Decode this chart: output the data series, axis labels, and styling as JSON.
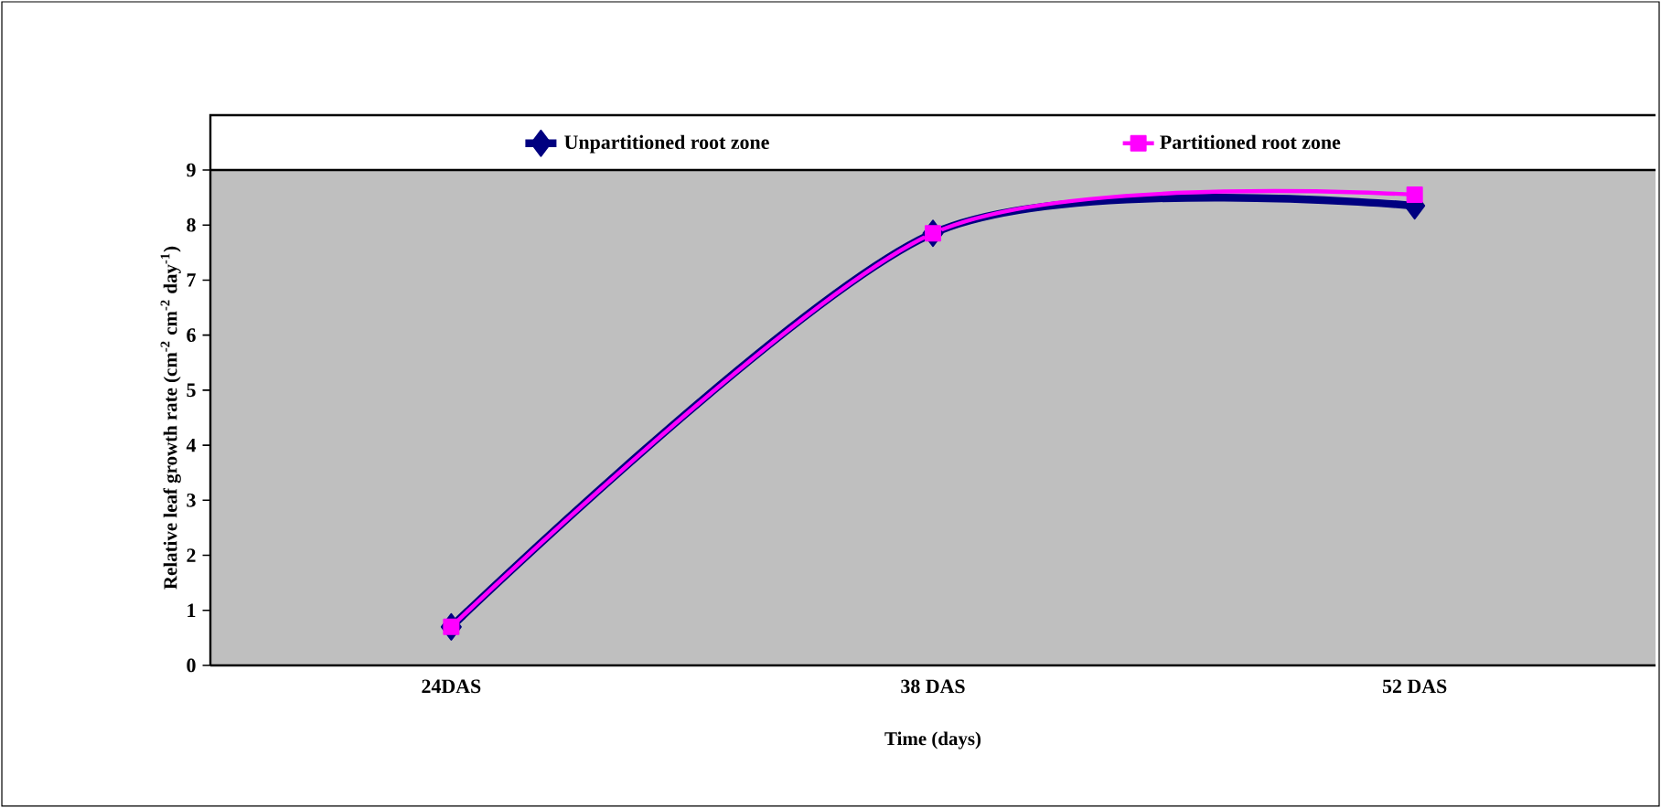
{
  "chart_data": {
    "type": "line",
    "xlabel": "Time (days)",
    "ylabel": "Relative leaf growth rate (cm$^{-2}$ cm$^{-2}$ day$^{-1}$)",
    "categories": [
      "24DAS",
      "38 DAS",
      "52 DAS"
    ],
    "series": [
      {
        "name": "Unpartitioned root zone",
        "color": "#000080",
        "marker": "diamond",
        "values": [
          0.7,
          7.85,
          8.35
        ]
      },
      {
        "name": "Partitioned root zone",
        "color": "#ff00ff",
        "marker": "square",
        "values": [
          0.7,
          7.85,
          8.55
        ]
      }
    ],
    "ylim": [
      0,
      9
    ],
    "yticks": [
      0,
      1,
      2,
      3,
      4,
      5,
      6,
      7,
      8,
      9
    ],
    "legend": "top"
  }
}
